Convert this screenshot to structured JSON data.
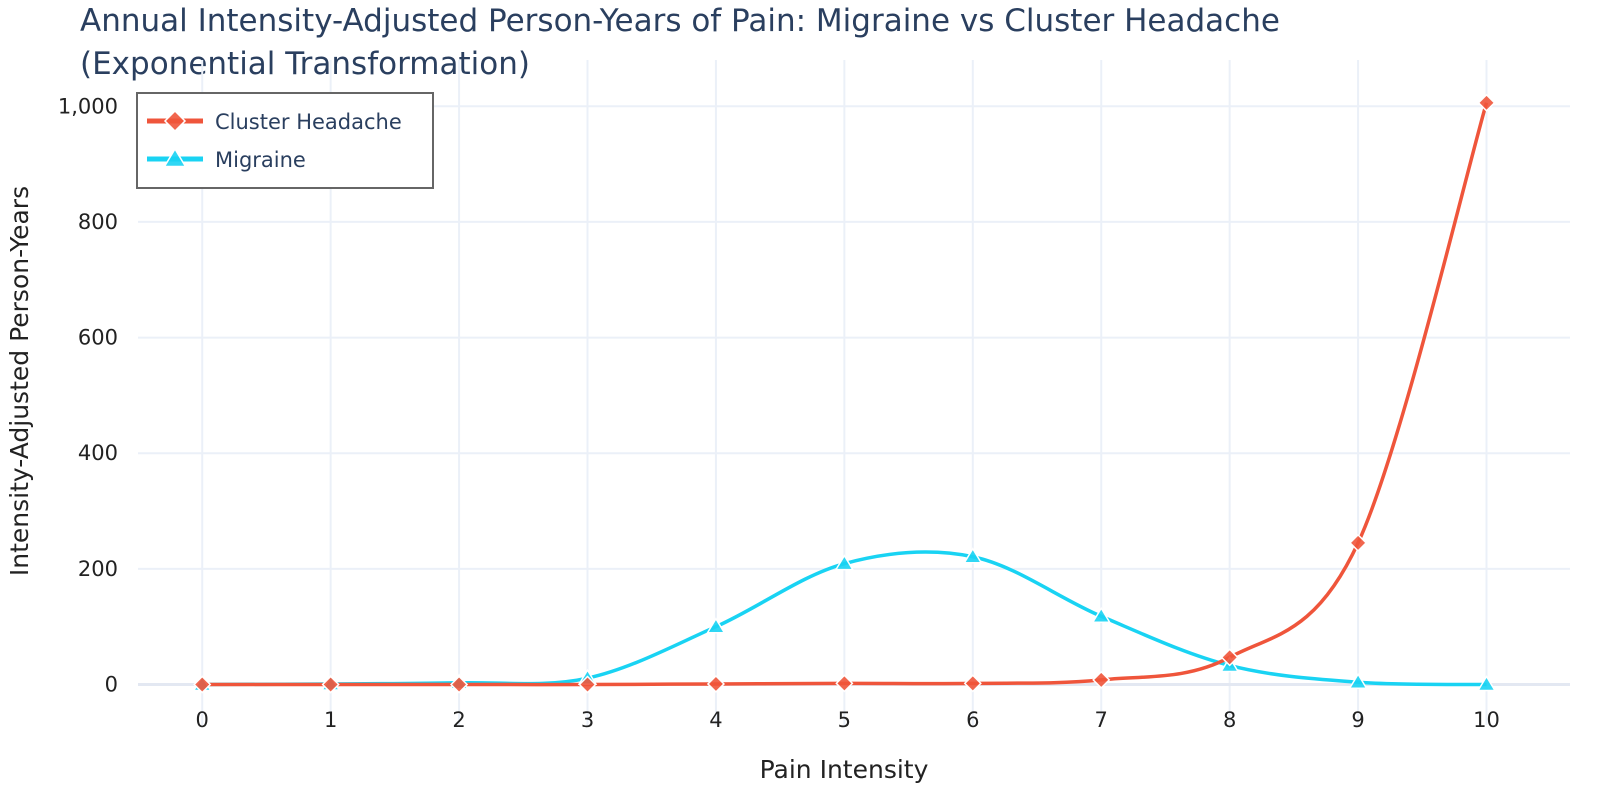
{
  "chart_data": {
    "type": "line",
    "title_lines": [
      "Annual Intensity-Adjusted Person-Years of Pain: Migraine vs Cluster Headache",
      "(Exponential Transformation)"
    ],
    "xlabel": "Pain Intensity",
    "ylabel": "Intensity-Adjusted Person-Years",
    "x": [
      0,
      1,
      2,
      3,
      4,
      5,
      6,
      7,
      8,
      9,
      10
    ],
    "x_tick_labels": [
      "0",
      "1",
      "2",
      "3",
      "4",
      "5",
      "6",
      "7",
      "8",
      "9",
      "10"
    ],
    "y_ticks": [
      0,
      200,
      400,
      600,
      800,
      1000
    ],
    "y_tick_labels": [
      "0",
      "200",
      "400",
      "600",
      "800",
      "1,000"
    ],
    "xlim": [
      -0.5,
      10.65
    ],
    "ylim": [
      -70,
      1080
    ],
    "grid": true,
    "legend_position": "top-left",
    "series": [
      {
        "name": "Cluster Headache",
        "color": "#ef553b",
        "marker": "diamond",
        "values": [
          0,
          0,
          0,
          0,
          1,
          2,
          2,
          8,
          47,
          245,
          1006
        ]
      },
      {
        "name": "Migraine",
        "color": "#19d3f3",
        "marker": "triangle-up",
        "values": [
          0,
          1,
          3,
          11,
          100,
          209,
          221,
          118,
          33,
          4,
          0
        ]
      }
    ]
  }
}
